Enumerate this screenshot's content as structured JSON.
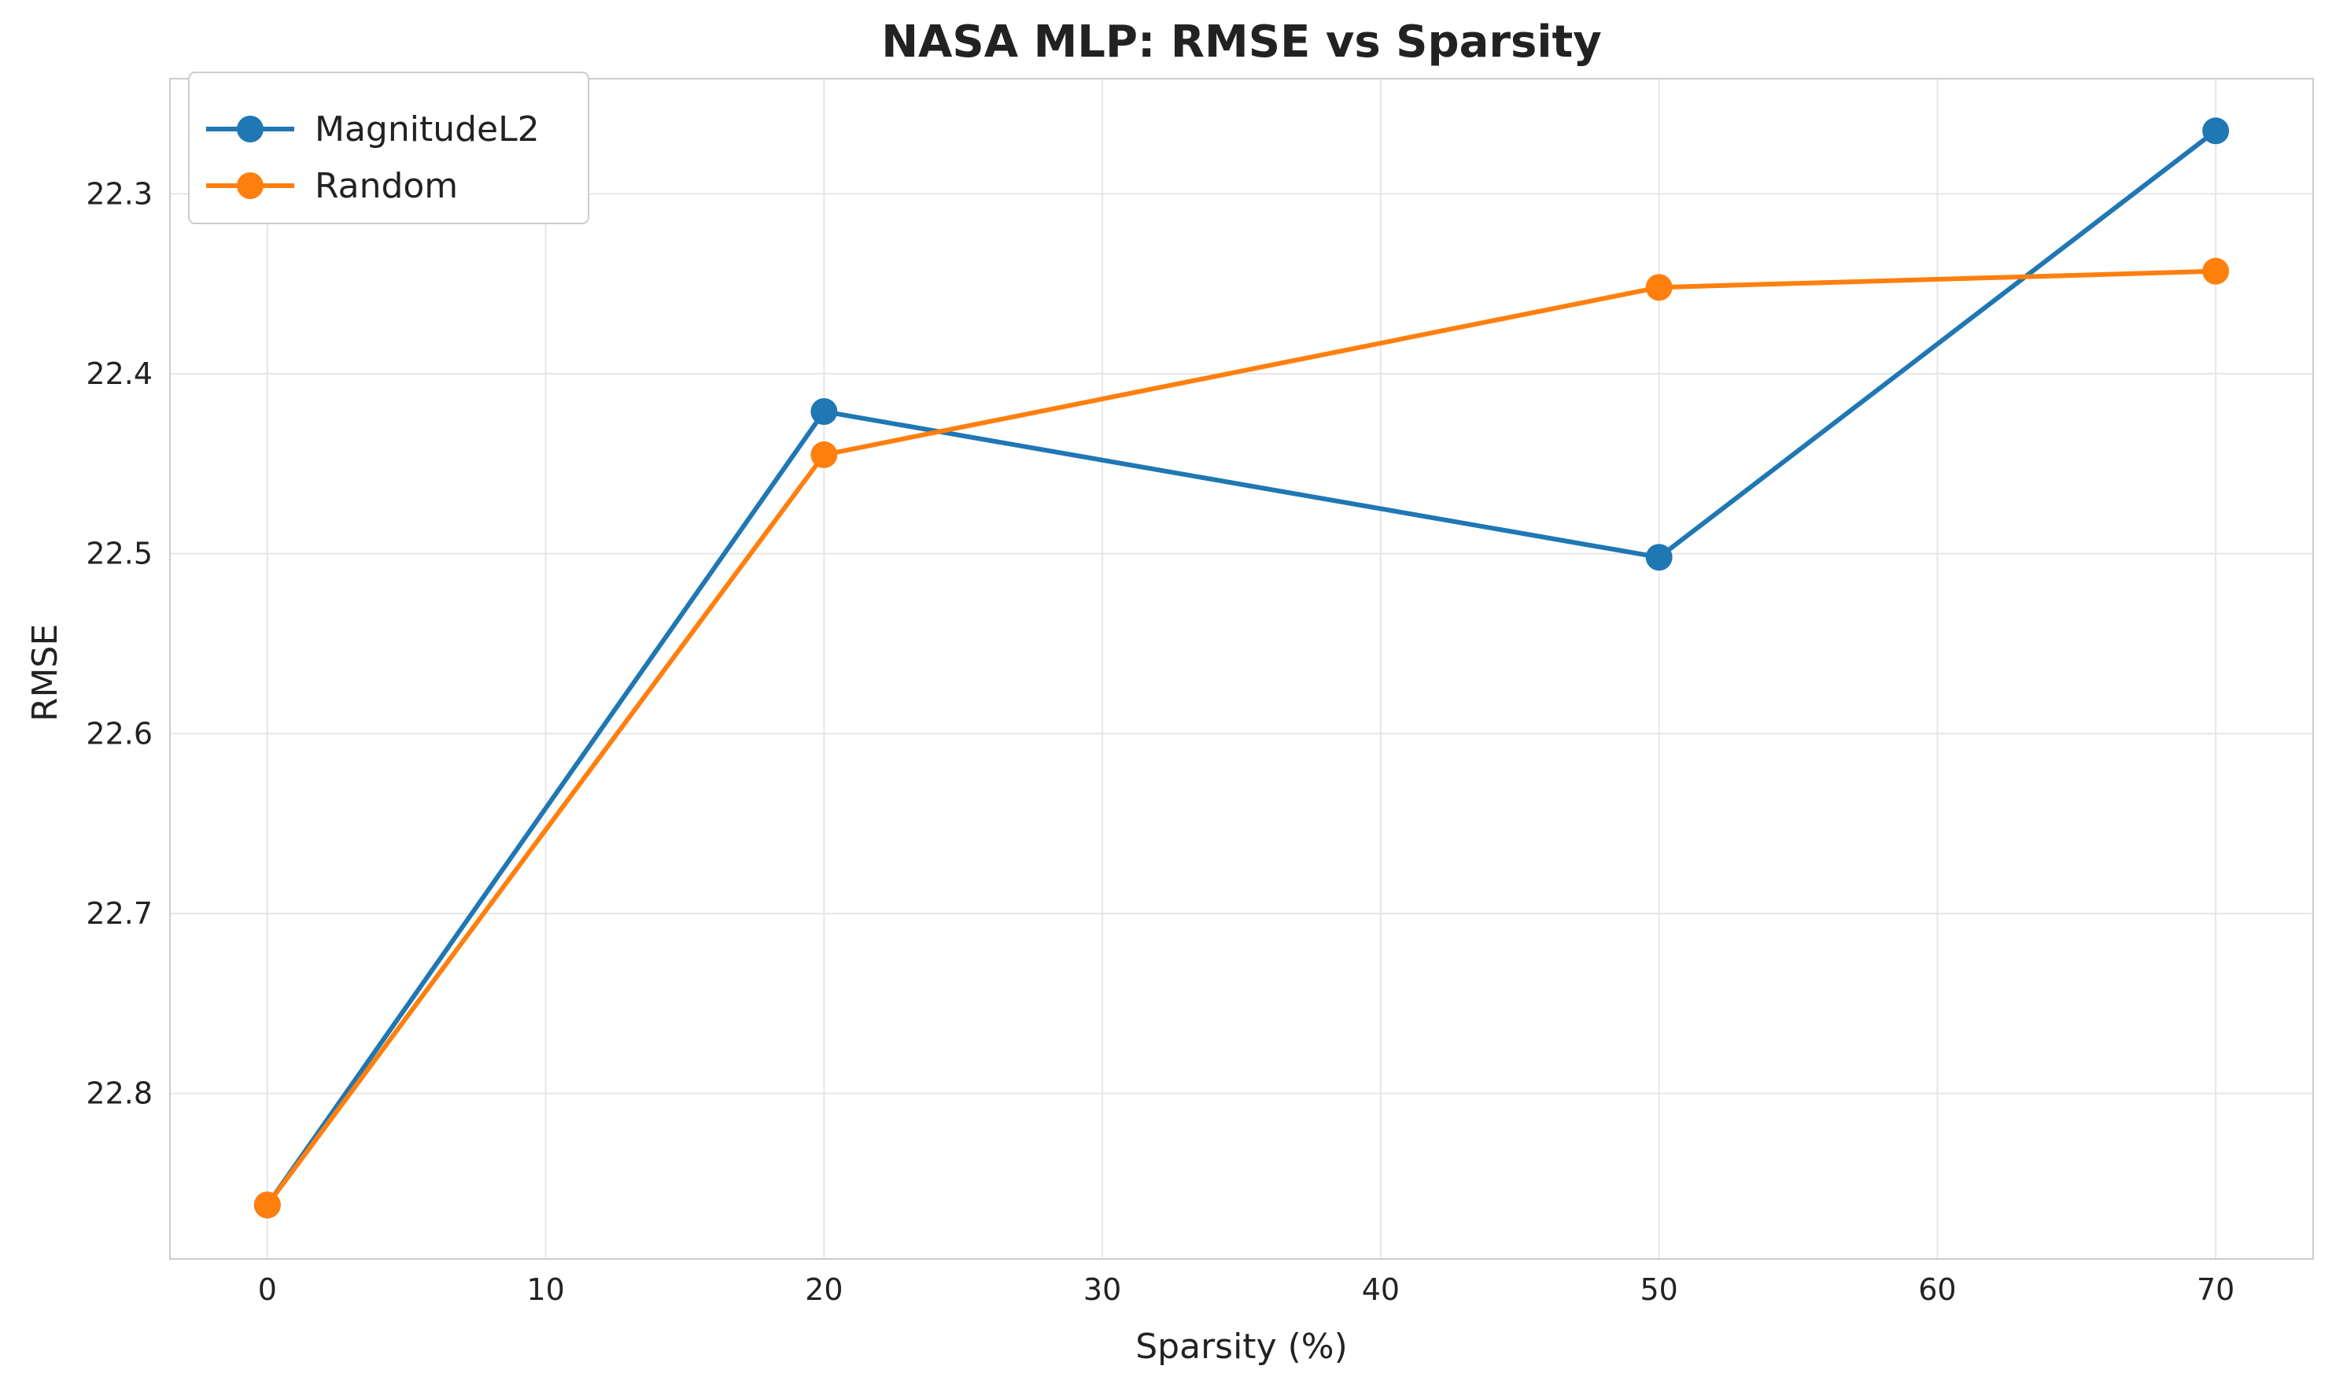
{
  "chart_data": {
    "type": "line",
    "title": "NASA MLP: RMSE vs Sparsity",
    "xlabel": "Sparsity (%)",
    "ylabel": "RMSE",
    "xlim": [
      -3.5,
      73.5
    ],
    "ylim": [
      22.892,
      22.236
    ],
    "y_inverted": true,
    "xticks": [
      0,
      10,
      20,
      30,
      40,
      50,
      60,
      70
    ],
    "yticks": [
      22.3,
      22.4,
      22.5,
      22.6,
      22.7,
      22.8
    ],
    "xtick_labels": [
      "0",
      "10",
      "20",
      "30",
      "40",
      "50",
      "60",
      "70"
    ],
    "ytick_labels": [
      "22.3",
      "22.4",
      "22.5",
      "22.6",
      "22.7",
      "22.8"
    ],
    "grid": true,
    "legend_position": "upper-left",
    "series": [
      {
        "name": "MagnitudeL2",
        "color": "#1f77b4",
        "x": [
          0,
          20,
          50,
          70
        ],
        "y": [
          22.862,
          22.421,
          22.502,
          22.265
        ]
      },
      {
        "name": "Random",
        "color": "#ff7f0e",
        "x": [
          0,
          20,
          50,
          70
        ],
        "y": [
          22.862,
          22.445,
          22.352,
          22.343
        ]
      }
    ]
  }
}
